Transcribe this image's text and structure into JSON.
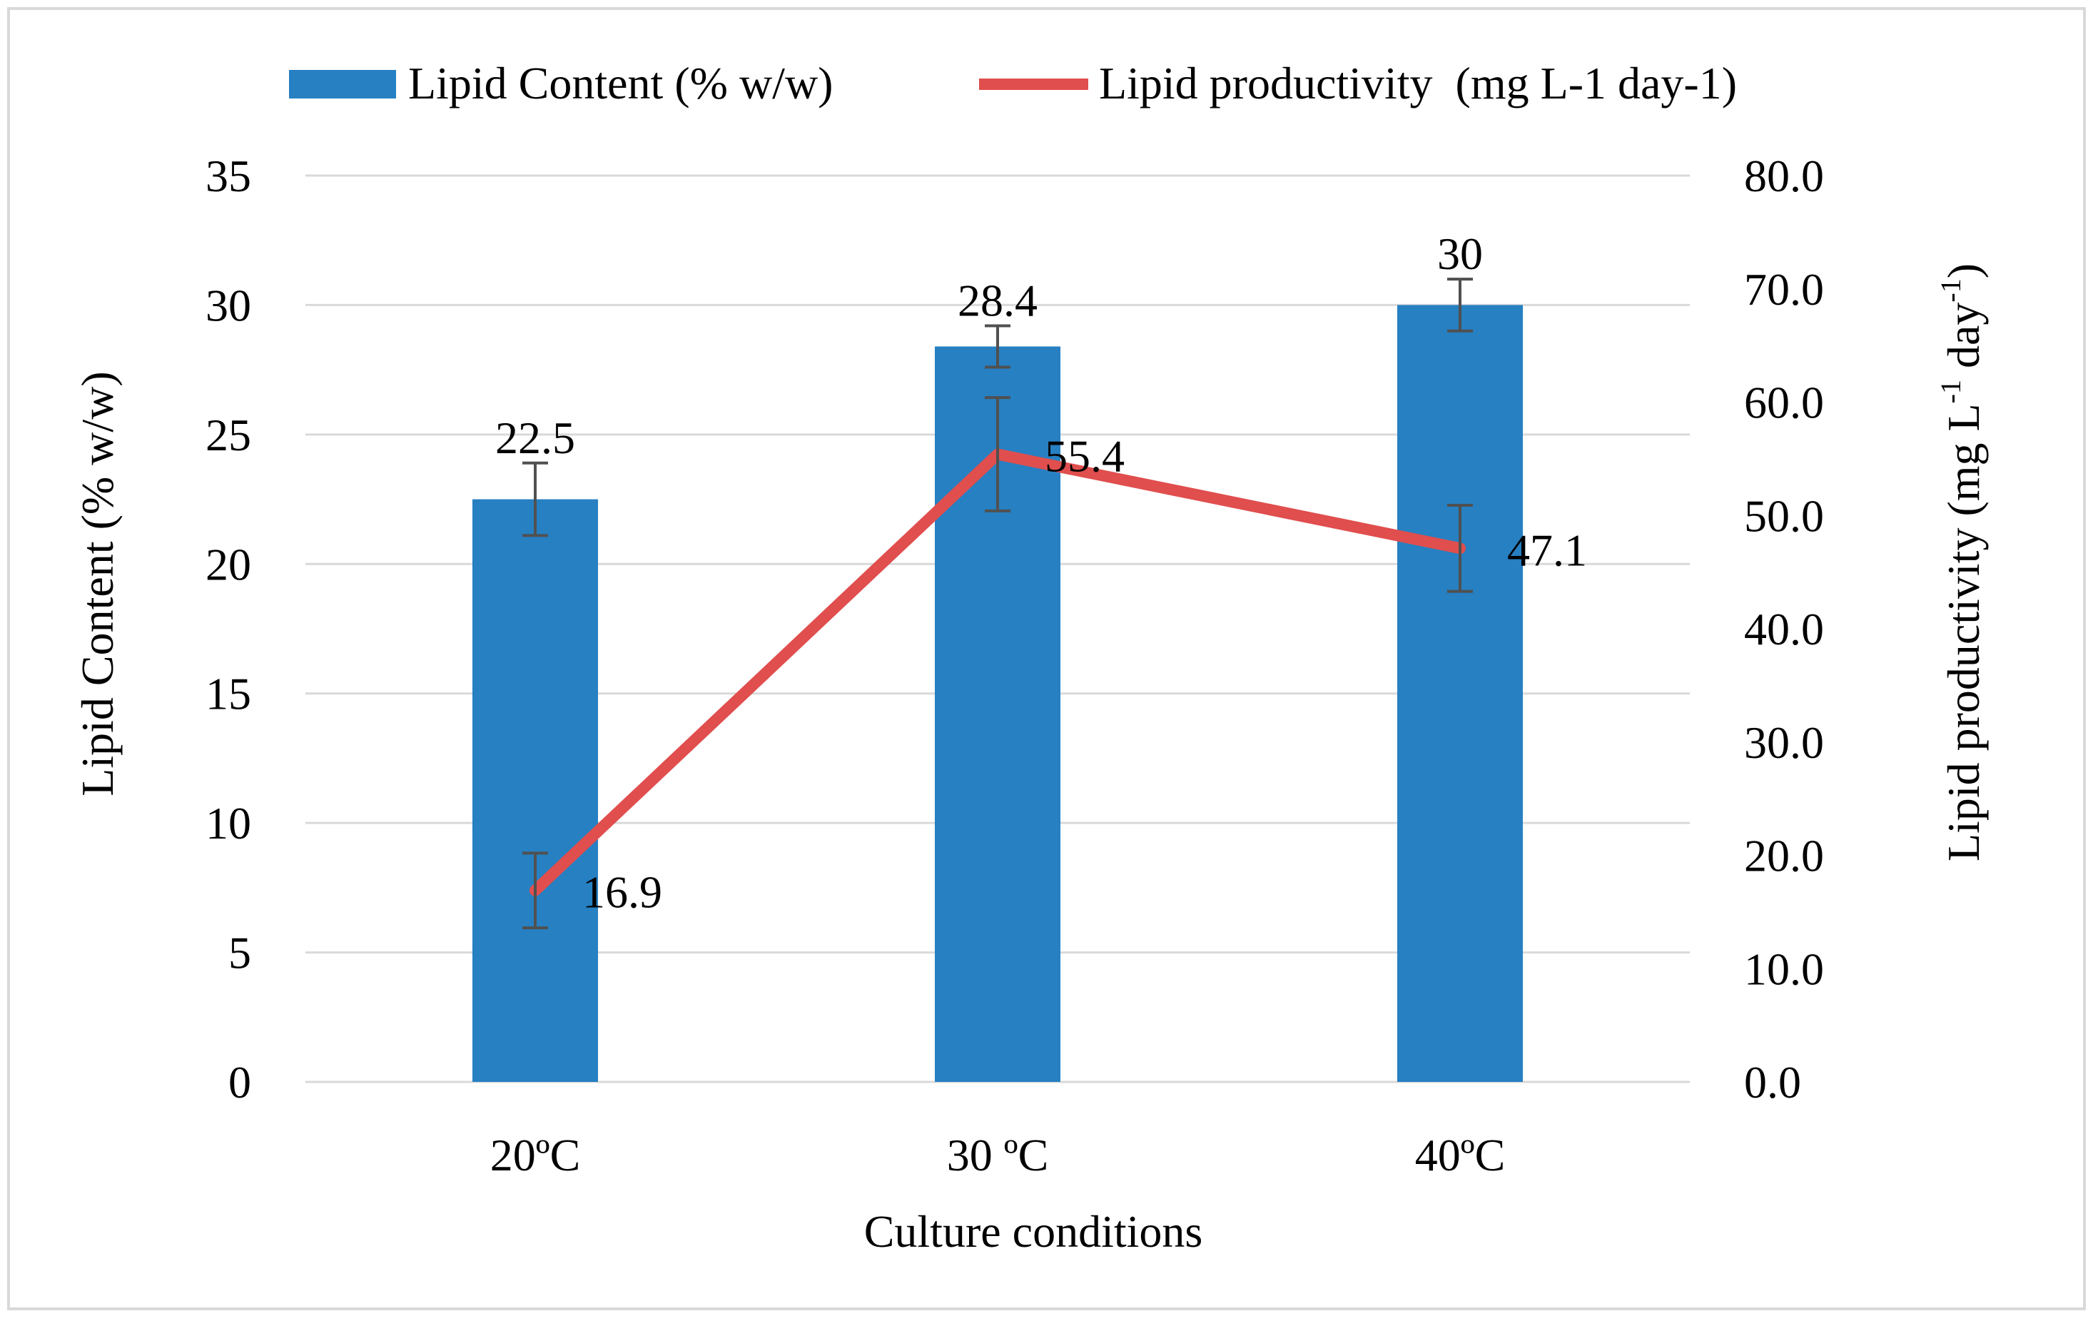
{
  "chart_data": {
    "type": "bar+line",
    "categories": [
      "20ºC",
      "30 ºC",
      "40ºC"
    ],
    "xlabel": "Culture conditions",
    "series": [
      {
        "name": "Lipid Content (% w/w)",
        "type": "bar",
        "axis": "left",
        "values": [
          22.5,
          28.4,
          30
        ],
        "labels": [
          "22.5",
          "28.4",
          "30"
        ],
        "errors": [
          1.4,
          0.8,
          1.0
        ],
        "color": "#2680C2"
      },
      {
        "name": "Lipid productivity  (mg L-1 day-1)",
        "type": "line",
        "axis": "right",
        "values": [
          16.9,
          55.4,
          47.1
        ],
        "labels": [
          "16.9",
          "55.4",
          "47.1"
        ],
        "errors": [
          3.3,
          5.0,
          3.8
        ],
        "color": "#E04E4E"
      }
    ],
    "y_left": {
      "label": "Lipid Content (% w/w)",
      "range": [
        0,
        35
      ],
      "ticks": [
        0,
        5,
        10,
        15,
        20,
        25,
        30,
        35
      ],
      "tick_labels": [
        "0",
        "5",
        "10",
        "15",
        "20",
        "25",
        "30",
        "35"
      ]
    },
    "y_right": {
      "label_main": "Lipid productivity  (mg L",
      "label_sup1": "-1",
      "label_mid": " day",
      "label_sup2": "-1",
      "label_end": ")",
      "range": [
        0,
        80
      ],
      "ticks": [
        0,
        10,
        20,
        30,
        40,
        50,
        60,
        70,
        80
      ],
      "tick_labels": [
        "0.0",
        "10.0",
        "20.0",
        "30.0",
        "40.0",
        "50.0",
        "60.0",
        "70.0",
        "80.0"
      ]
    },
    "grid": true,
    "legend_position": "top-center",
    "error_bar_color": "#505050",
    "grid_color": "#D9D9D9",
    "frame_color": "#D9D9D9"
  }
}
